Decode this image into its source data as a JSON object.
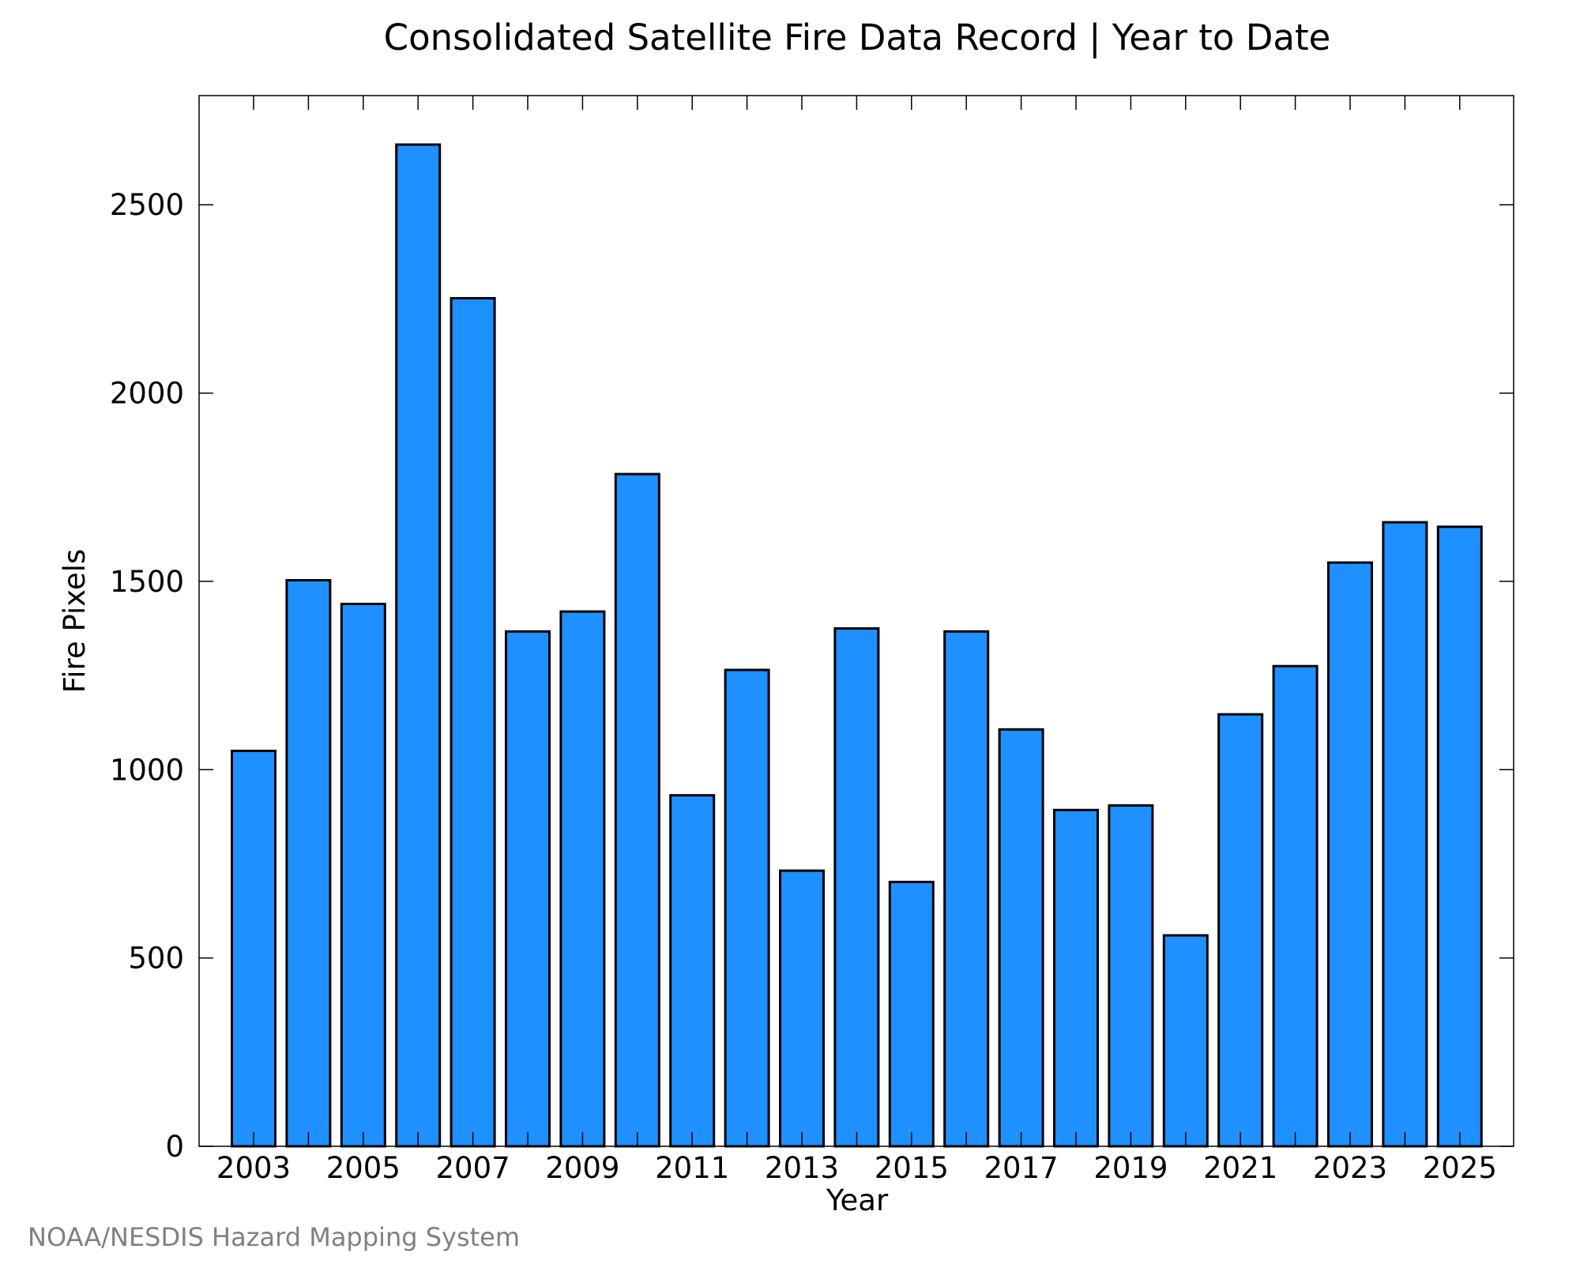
{
  "chart_data": {
    "type": "bar",
    "title": "Consolidated Satellite Fire Data Record | Year to Date",
    "xlabel": "Year",
    "ylabel": "Fire Pixels",
    "categories": [
      2003,
      2004,
      2005,
      2006,
      2007,
      2008,
      2009,
      2010,
      2011,
      2012,
      2013,
      2014,
      2015,
      2016,
      2017,
      2018,
      2019,
      2020,
      2021,
      2022,
      2023,
      2024,
      2025
    ],
    "values": [
      1050,
      1503,
      1440,
      2660,
      2252,
      1367,
      1420,
      1785,
      932,
      1265,
      732,
      1375,
      702,
      1367,
      1107,
      893,
      905,
      560,
      1147,
      1275,
      1550,
      1657,
      1645
    ],
    "x_tick_labels": [
      "2003",
      "2005",
      "2007",
      "2009",
      "2011",
      "2013",
      "2015",
      "2017",
      "2019",
      "2021",
      "2023",
      "2025"
    ],
    "y_ticks": [
      0,
      500,
      1000,
      1500,
      2000,
      2500
    ],
    "ylim": [
      0,
      2790
    ],
    "grid": false,
    "bar_color": "#1e90ff",
    "legend": "none"
  },
  "credit": "NOAA/NESDIS Hazard Mapping System"
}
